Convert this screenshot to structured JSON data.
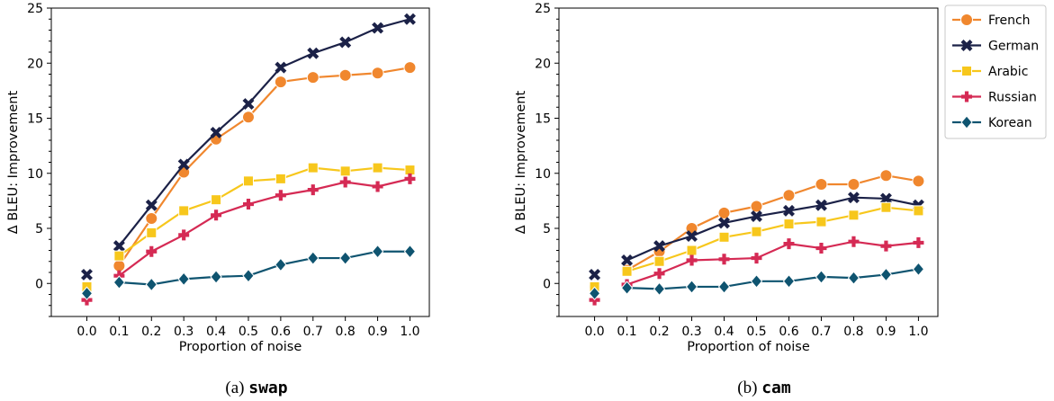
{
  "series_meta": [
    {
      "name": "French",
      "color": "#f0872e",
      "marker": "circle"
    },
    {
      "name": "German",
      "color": "#1b2147",
      "marker": "x"
    },
    {
      "name": "Arabic",
      "color": "#f7c71c",
      "marker": "square"
    },
    {
      "name": "Russian",
      "color": "#d52a54",
      "marker": "plus"
    },
    {
      "name": "Korean",
      "color": "#0f5470",
      "marker": "diamond"
    }
  ],
  "chart_data": [
    {
      "type": "line",
      "title": "",
      "caption_prefix": "(a) ",
      "caption_code": "swap",
      "xlabel": "Proportion of noise",
      "ylabel": "Δ BLEU:  Improvement",
      "xlim": [
        -0.11,
        1.06
      ],
      "ylim": [
        -3,
        25
      ],
      "xticks": [
        "0.0",
        "0.1",
        "0.2",
        "0.3",
        "0.4",
        "0.5",
        "0.6",
        "0.7",
        "0.8",
        "0.9",
        "1.0"
      ],
      "yticks": [
        "0",
        "5",
        "10",
        "15",
        "20",
        "25"
      ],
      "legend": "none",
      "series": [
        {
          "name": "French",
          "x0": -0.3,
          "x": [
            0.1,
            0.2,
            0.3,
            0.4,
            0.5,
            0.6,
            0.7,
            0.8,
            0.9,
            1.0
          ],
          "values": [
            1.6,
            5.9,
            10.1,
            13.1,
            15.1,
            18.3,
            18.7,
            18.9,
            19.1,
            19.6
          ]
        },
        {
          "name": "German",
          "x0": 0.8,
          "x": [
            0.1,
            0.2,
            0.3,
            0.4,
            0.5,
            0.6,
            0.7,
            0.8,
            0.9,
            1.0
          ],
          "values": [
            3.4,
            7.1,
            10.8,
            13.7,
            16.3,
            19.6,
            20.9,
            21.9,
            23.2,
            24.0
          ]
        },
        {
          "name": "Arabic",
          "x0": -0.3,
          "x": [
            0.1,
            0.2,
            0.3,
            0.4,
            0.5,
            0.6,
            0.7,
            0.8,
            0.9,
            1.0
          ],
          "values": [
            2.5,
            4.6,
            6.6,
            7.6,
            9.3,
            9.5,
            10.5,
            10.2,
            10.5,
            10.3
          ]
        },
        {
          "name": "Russian",
          "x0": -1.5,
          "x": [
            0.1,
            0.2,
            0.3,
            0.4,
            0.5,
            0.6,
            0.7,
            0.8,
            0.9,
            1.0
          ],
          "values": [
            0.7,
            2.9,
            4.4,
            6.2,
            7.2,
            8.0,
            8.5,
            9.2,
            8.8,
            9.5
          ]
        },
        {
          "name": "Korean",
          "x0": -0.9,
          "x": [
            0.1,
            0.2,
            0.3,
            0.4,
            0.5,
            0.6,
            0.7,
            0.8,
            0.9,
            1.0
          ],
          "values": [
            0.1,
            -0.1,
            0.4,
            0.6,
            0.7,
            1.7,
            2.3,
            2.3,
            2.9,
            2.9
          ]
        }
      ]
    },
    {
      "type": "line",
      "title": "",
      "caption_prefix": "(b) ",
      "caption_code": "cam",
      "xlabel": "Proportion of noise",
      "ylabel": "Δ BLEU:  Improvement",
      "xlim": [
        -0.11,
        1.06
      ],
      "ylim": [
        -3,
        25
      ],
      "xticks": [
        "0.0",
        "0.1",
        "0.2",
        "0.3",
        "0.4",
        "0.5",
        "0.6",
        "0.7",
        "0.8",
        "0.9",
        "1.0"
      ],
      "yticks": [
        "0",
        "5",
        "10",
        "15",
        "20",
        "25"
      ],
      "legend": "outside-right",
      "series": [
        {
          "name": "French",
          "x0": -0.3,
          "x": [
            0.1,
            0.2,
            0.3,
            0.4,
            0.5,
            0.6,
            0.7,
            0.8,
            0.9,
            1.0
          ],
          "values": [
            1.2,
            2.9,
            5.0,
            6.4,
            7.0,
            8.0,
            9.0,
            9.0,
            9.8,
            9.3
          ]
        },
        {
          "name": "German",
          "x0": 0.8,
          "x": [
            0.1,
            0.2,
            0.3,
            0.4,
            0.5,
            0.6,
            0.7,
            0.8,
            0.9,
            1.0
          ],
          "values": [
            2.1,
            3.4,
            4.3,
            5.5,
            6.1,
            6.6,
            7.1,
            7.8,
            7.7,
            7.1
          ]
        },
        {
          "name": "Arabic",
          "x0": -0.3,
          "x": [
            0.1,
            0.2,
            0.3,
            0.4,
            0.5,
            0.6,
            0.7,
            0.8,
            0.9,
            1.0
          ],
          "values": [
            1.1,
            2.0,
            3.0,
            4.2,
            4.7,
            5.4,
            5.6,
            6.2,
            6.9,
            6.6
          ]
        },
        {
          "name": "Russian",
          "x0": -1.5,
          "x": [
            0.1,
            0.2,
            0.3,
            0.4,
            0.5,
            0.6,
            0.7,
            0.8,
            0.9,
            1.0
          ],
          "values": [
            -0.1,
            0.9,
            2.1,
            2.2,
            2.3,
            3.6,
            3.2,
            3.8,
            3.4,
            3.7
          ]
        },
        {
          "name": "Korean",
          "x0": -0.9,
          "x": [
            0.1,
            0.2,
            0.3,
            0.4,
            0.5,
            0.6,
            0.7,
            0.8,
            0.9,
            1.0
          ],
          "values": [
            -0.4,
            -0.5,
            -0.3,
            -0.3,
            0.2,
            0.2,
            0.6,
            0.5,
            0.8,
            1.3
          ]
        }
      ]
    }
  ]
}
